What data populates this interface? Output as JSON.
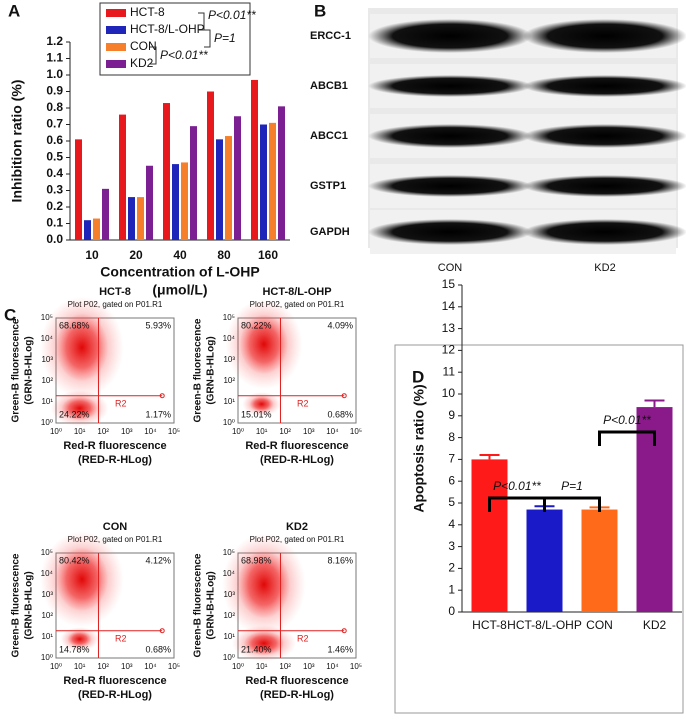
{
  "chart_data": [
    {
      "panel_label": "A",
      "type": "bar",
      "ylabel": "Inhibition ratio (%)",
      "xlabel": [
        "Concentration of L-OHP",
        "(μmol/L)"
      ],
      "categories": [
        "10",
        "20",
        "40",
        "80",
        "160"
      ],
      "series": [
        {
          "name": "HCT-8",
          "color": "#e8191c",
          "values": [
            0.61,
            0.76,
            0.83,
            0.9,
            0.97
          ]
        },
        {
          "name": "HCT-8/L-OHP",
          "color": "#1f25b8",
          "values": [
            0.12,
            0.26,
            0.46,
            0.61,
            0.7
          ]
        },
        {
          "name": "CON",
          "color": "#f57f2a",
          "values": [
            0.13,
            0.26,
            0.47,
            0.63,
            0.71
          ]
        },
        {
          "name": "KD2",
          "color": "#7b1f93",
          "values": [
            0.31,
            0.45,
            0.69,
            0.75,
            0.81
          ]
        }
      ],
      "ylim": [
        0,
        1.2
      ],
      "yticks": [
        {
          "value": 0,
          "label": "0.0"
        },
        0.1,
        0.2,
        0.3,
        0.4,
        0.5,
        0.6,
        0.7,
        0.8,
        0.9,
        {
          "value": 1,
          "label": "1.0"
        },
        1.1,
        1.2
      ],
      "legend": "upper left",
      "annotations": [
        "P<0.01**",
        "P=1",
        "P<0.01**"
      ]
    },
    {
      "panel_label": "D",
      "type": "bar",
      "ylabel": "Apoptosis ratio (%)",
      "categories": [
        "HCT-8",
        "HCT-8/L-OHP",
        "CON",
        "KD2"
      ],
      "values": [
        7.0,
        4.7,
        4.7,
        9.4
      ],
      "errors": [
        0.2,
        0.15,
        0.1,
        0.3
      ],
      "colors": [
        "#ff1a1a",
        "#1a1ac8",
        "#ff6a1a",
        "#8a1a8a"
      ],
      "ylim": [
        0,
        15
      ],
      "yticks": [
        0,
        1,
        2,
        3,
        4,
        5,
        6,
        7,
        8,
        9,
        10,
        11,
        12,
        13,
        14,
        15
      ],
      "annotations": [
        "P<0.01**",
        "P=1",
        "P<0.01**"
      ]
    }
  ],
  "blot": {
    "panel_label": "B",
    "rows": [
      "ERCC-1",
      "ABCB1",
      "ABCC1",
      "GSTP1",
      "GAPDH"
    ],
    "lanes": [
      "CON",
      "KD2"
    ]
  },
  "flow": {
    "panel_label": "C",
    "xlabel": [
      "Red-R fluorescence",
      "(RED-R-HLog)"
    ],
    "ylabel": [
      "Green-B fluorescence",
      "(GRN-B-HLog)"
    ],
    "ticks": [
      "10⁰",
      "10¹",
      "10²",
      "10³",
      "10⁴",
      "10⁵"
    ],
    "plots": [
      {
        "title": "HCT-8",
        "subtitle": "Plot P02, gated on P01.R1",
        "gate": "R2",
        "quadrants": [
          "68.68%",
          "5.93%",
          "24.22%",
          "1.17%"
        ]
      },
      {
        "title": "HCT-8/L-OHP",
        "subtitle": "Plot P02, gated on P01.R1",
        "gate": "R2",
        "quadrants": [
          "80.22%",
          "4.09%",
          "15.01%",
          "0.68%"
        ]
      },
      {
        "title": "CON",
        "subtitle": "Plot P02, gated on P01.R1",
        "gate": "R2",
        "quadrants": [
          "80.42%",
          "4.12%",
          "14.78%",
          "0.68%"
        ]
      },
      {
        "title": "KD2",
        "subtitle": "Plot P02, gated on P01.R1",
        "gate": "R2",
        "quadrants": [
          "68.98%",
          "8.16%",
          "21.40%",
          "1.46%"
        ]
      }
    ]
  }
}
